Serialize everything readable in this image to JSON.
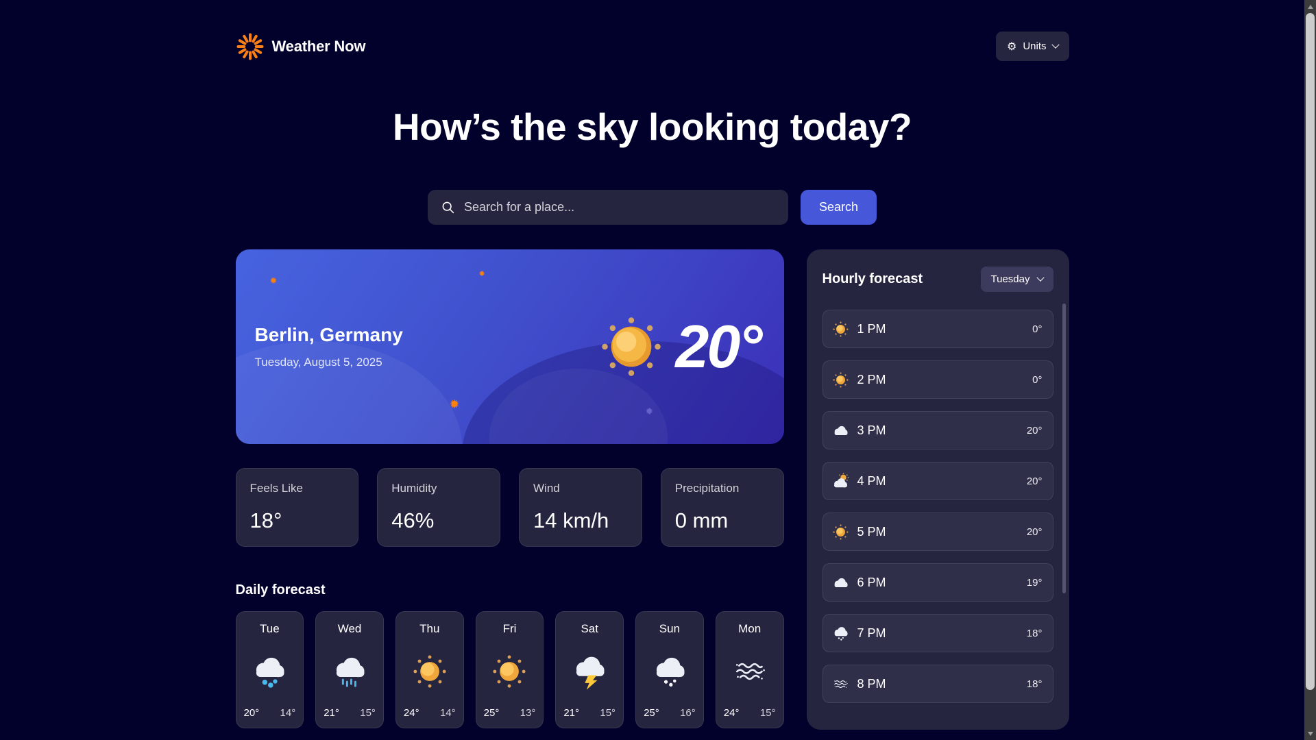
{
  "app": {
    "title": "Weather Now"
  },
  "header": {
    "units_label": "Units"
  },
  "hero": {
    "heading": "How’s the sky looking today?"
  },
  "search": {
    "placeholder": "Search for a place...",
    "button_label": "Search"
  },
  "current": {
    "location": "Berlin, Germany",
    "date": "Tuesday, August 5, 2025",
    "temperature": "20°",
    "icon": "sun"
  },
  "stats": [
    {
      "label": "Feels Like",
      "value": "18°"
    },
    {
      "label": "Humidity",
      "value": "46%"
    },
    {
      "label": "Wind",
      "value": "14 km/h"
    },
    {
      "label": "Precipitation",
      "value": "0 mm"
    }
  ],
  "daily": {
    "heading": "Daily forecast",
    "days": [
      {
        "day": "Tue",
        "icon": "rain",
        "high": "20°",
        "low": "14°"
      },
      {
        "day": "Wed",
        "icon": "drizzle",
        "high": "21°",
        "low": "15°"
      },
      {
        "day": "Thu",
        "icon": "sun",
        "high": "24°",
        "low": "14°"
      },
      {
        "day": "Fri",
        "icon": "sun",
        "high": "25°",
        "low": "13°"
      },
      {
        "day": "Sat",
        "icon": "storm",
        "high": "21°",
        "low": "15°"
      },
      {
        "day": "Sun",
        "icon": "snow",
        "high": "25°",
        "low": "16°"
      },
      {
        "day": "Mon",
        "icon": "fog",
        "high": "24°",
        "low": "15°"
      }
    ]
  },
  "hourly": {
    "heading": "Hourly forecast",
    "selected_day": "Tuesday",
    "hours": [
      {
        "time": "1 PM",
        "icon": "sun",
        "temp": "0°"
      },
      {
        "time": "2 PM",
        "icon": "sun",
        "temp": "0°"
      },
      {
        "time": "3 PM",
        "icon": "cloud",
        "temp": "20°"
      },
      {
        "time": "4 PM",
        "icon": "partly",
        "temp": "20°"
      },
      {
        "time": "5 PM",
        "icon": "sun",
        "temp": "20°"
      },
      {
        "time": "6 PM",
        "icon": "cloud",
        "temp": "19°"
      },
      {
        "time": "7 PM",
        "icon": "snow",
        "temp": "18°"
      },
      {
        "time": "8 PM",
        "icon": "fog",
        "temp": "18°"
      }
    ]
  },
  "icons": {
    "gear": "⚙",
    "sparkle": "✹"
  },
  "colors": {
    "page_bg": "#02012C",
    "card_bg": "#262540",
    "row_bg": "#302F4A",
    "accent_blue": "#4658D9",
    "brand_orange": "#FF820A",
    "muted_text": "#D4D3D9",
    "hero_gradient_start": "#4763DF",
    "hero_gradient_end": "#3B2FB8"
  }
}
